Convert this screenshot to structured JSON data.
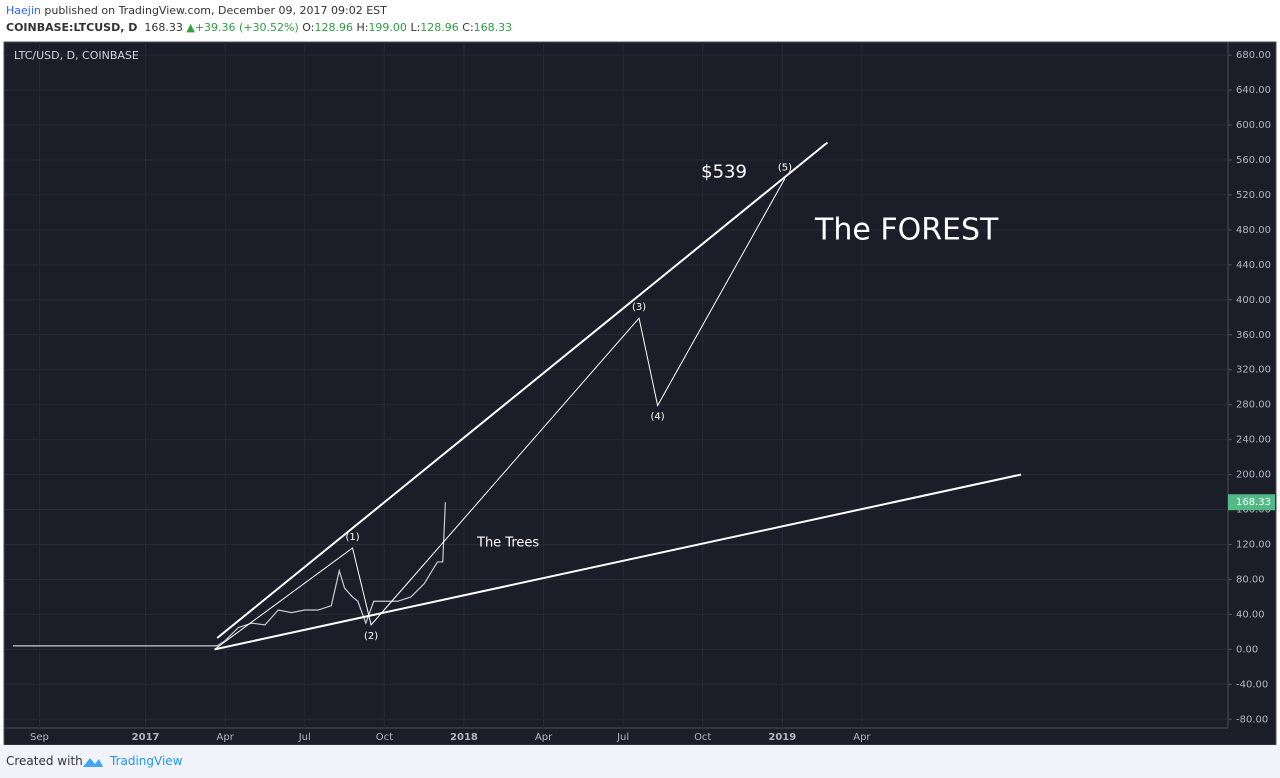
{
  "header": {
    "author": "Haejin",
    "published": "published on TradingView.com, December 09, 2017 09:02 EST",
    "symbol": "COINBASE:LTCUSD, D",
    "change": "+39.36 (+30.52%)",
    "open_label": "O:",
    "high_label": "H:",
    "low_label": "L:",
    "close_label": "C:"
  },
  "footer": {
    "created": "Created with",
    "brand": "TradingView"
  },
  "chart_data": {
    "type": "line",
    "title": "LTC/USD, D, COINBASE",
    "color": "#c8ccd6",
    "last_price": 168.33,
    "open": 128.96,
    "high": {
      "value": 199,
      "label": "199.00"
    },
    "low": 128.96,
    "x": [
      0,
      1,
      2,
      3,
      4,
      5,
      6,
      7,
      7.7,
      8,
      8.5,
      9,
      9.5,
      10,
      10.5,
      11,
      11.5,
      12,
      12.3,
      12.5,
      12.8,
      13,
      13.3,
      13.6,
      14,
      14.5,
      15,
      15.5,
      16,
      16.2,
      16.3
    ],
    "values": [
      4,
      4,
      4,
      4,
      4,
      4,
      4,
      4,
      4,
      10,
      25,
      30,
      28,
      45,
      42,
      45,
      45,
      50,
      90,
      70,
      60,
      55,
      30,
      55,
      55,
      55,
      60,
      75,
      100,
      100,
      168.33
    ],
    "xlim": [
      -0.3,
      45.8
    ],
    "ylim": [
      -90,
      695
    ],
    "xticks": [
      {
        "value": 1,
        "label": "Sep"
      },
      {
        "value": 5,
        "label": "2017"
      },
      {
        "value": 8,
        "label": "Apr"
      },
      {
        "value": 11,
        "label": "Jul"
      },
      {
        "value": 14,
        "label": "Oct"
      },
      {
        "value": 17,
        "label": "2018"
      },
      {
        "value": 20,
        "label": "Apr"
      },
      {
        "value": 23,
        "label": "Jul"
      },
      {
        "value": 26,
        "label": "Oct"
      },
      {
        "value": 29,
        "label": "2019"
      },
      {
        "value": 32,
        "label": "Apr"
      }
    ],
    "yticks": [
      {
        "value": 680,
        "label": "680.00"
      },
      {
        "value": 640,
        "label": "640.00"
      },
      {
        "value": 600,
        "label": "600.00"
      },
      {
        "value": 560,
        "label": "560.00"
      },
      {
        "value": 520,
        "label": "520.00"
      },
      {
        "value": 480,
        "label": "480.00"
      },
      {
        "value": 440,
        "label": "440.00"
      },
      {
        "value": 400,
        "label": "400.00"
      },
      {
        "value": 360,
        "label": "360.00"
      },
      {
        "value": 320,
        "label": "320.00"
      },
      {
        "value": 280,
        "label": "280.00"
      },
      {
        "value": 240,
        "label": "240.00"
      },
      {
        "value": 200,
        "label": "200.00"
      },
      {
        "value": 160,
        "label": "160.00"
      },
      {
        "value": 120,
        "label": "120.00"
      },
      {
        "value": 80,
        "label": "80.00"
      },
      {
        "value": 40,
        "label": "40.00"
      },
      {
        "value": 0,
        "label": "0.00"
      },
      {
        "value": -40,
        "label": "-40.00"
      },
      {
        "value": -80,
        "label": "-80.00"
      }
    ],
    "grid": true,
    "trend_lines": [
      {
        "x": [
          7.7,
          30.7
        ],
        "values": [
          13,
          580
        ]
      },
      {
        "x": [
          7.6,
          38
        ],
        "values": [
          0,
          200
        ]
      }
    ],
    "wave": {
      "x": [
        7.6,
        12.8,
        13.5,
        23.6,
        24.3,
        29.1
      ],
      "values": [
        0,
        116,
        28,
        379,
        279,
        539
      ],
      "labels": [
        null,
        "(1)",
        "(2)",
        "(3)",
        "(4)",
        "(5)"
      ]
    },
    "annotations": {
      "target": "$539",
      "forest": "The FOREST",
      "trees": "The Trees"
    }
  }
}
